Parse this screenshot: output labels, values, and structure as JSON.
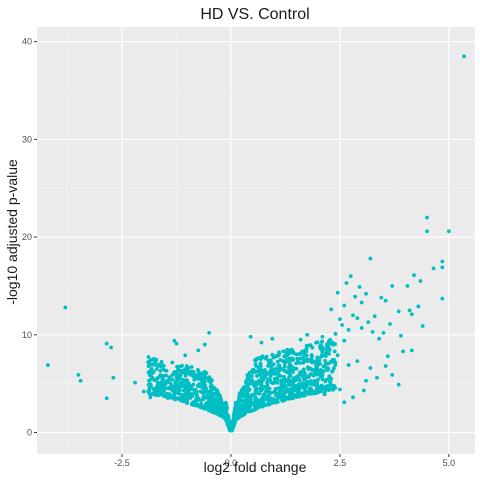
{
  "chart_data": {
    "type": "scatter",
    "title": "HD VS. Control",
    "xlabel": "log2 fold change",
    "ylabel": "-log10 adjusted p-value",
    "xlim": [
      -4.45,
      5.6
    ],
    "ylim": [
      -2.2,
      41.5
    ],
    "x_ticks": [
      -2.5,
      0.0,
      2.5,
      5.0
    ],
    "x_tick_labels": [
      "-2.5",
      "0.0",
      "2.5",
      "5.0"
    ],
    "y_ticks": [
      0,
      10,
      20,
      30,
      40
    ],
    "y_tick_labels": [
      "0",
      "10",
      "20",
      "30",
      "40"
    ],
    "grid": true,
    "background": "#ebebeb",
    "point_color": "#00bfc4",
    "series": [
      {
        "values": [
          {
            "x": 5.35,
            "y": 38.5
          },
          {
            "x": 4.5,
            "y": 22.0
          },
          {
            "x": 4.5,
            "y": 20.6
          },
          {
            "x": 5.0,
            "y": 20.6
          },
          {
            "x": 3.2,
            "y": 17.8
          },
          {
            "x": 4.85,
            "y": 17.5
          },
          {
            "x": 4.85,
            "y": 16.9
          },
          {
            "x": 4.65,
            "y": 16.8
          },
          {
            "x": 4.2,
            "y": 16.1
          },
          {
            "x": 2.75,
            "y": 16.0
          },
          {
            "x": 4.35,
            "y": 15.5
          },
          {
            "x": 2.65,
            "y": 15.3
          },
          {
            "x": 3.7,
            "y": 15.0
          },
          {
            "x": 4.05,
            "y": 15.0
          },
          {
            "x": 2.95,
            "y": 14.9
          },
          {
            "x": 2.45,
            "y": 14.3
          },
          {
            "x": 3.1,
            "y": 14.2
          },
          {
            "x": 2.85,
            "y": 13.9
          },
          {
            "x": 3.45,
            "y": 13.8
          },
          {
            "x": 4.85,
            "y": 13.7
          },
          {
            "x": 3.55,
            "y": 13.5
          },
          {
            "x": 3.0,
            "y": 13.3
          },
          {
            "x": 2.6,
            "y": 13.0
          },
          {
            "x": 4.3,
            "y": 12.9
          },
          {
            "x": 2.3,
            "y": 12.6
          },
          {
            "x": 4.1,
            "y": 12.5
          },
          {
            "x": 3.85,
            "y": 12.4
          },
          {
            "x": 4.15,
            "y": 12.1
          },
          {
            "x": 2.8,
            "y": 12.0
          },
          {
            "x": 3.3,
            "y": 11.9
          },
          {
            "x": 2.9,
            "y": 11.7
          },
          {
            "x": 2.5,
            "y": 11.6
          },
          {
            "x": 3.15,
            "y": 11.3
          },
          {
            "x": 3.65,
            "y": 11.1
          },
          {
            "x": 2.55,
            "y": 11.0
          },
          {
            "x": 4.4,
            "y": 10.9
          },
          {
            "x": 3.0,
            "y": 10.7
          },
          {
            "x": 2.7,
            "y": 10.5
          },
          {
            "x": 3.25,
            "y": 10.3
          },
          {
            "x": 3.5,
            "y": 10.2
          },
          {
            "x": 2.4,
            "y": 10.1
          },
          {
            "x": 1.75,
            "y": 10.0
          },
          {
            "x": 3.9,
            "y": 9.9
          },
          {
            "x": 2.1,
            "y": 9.8
          },
          {
            "x": 3.4,
            "y": 9.6
          },
          {
            "x": 1.6,
            "y": 9.5
          },
          {
            "x": 2.6,
            "y": 9.4
          },
          {
            "x": 2.2,
            "y": 9.0
          },
          {
            "x": 4.15,
            "y": 8.4
          },
          {
            "x": 3.6,
            "y": 7.8
          },
          {
            "x": 3.95,
            "y": 8.3
          },
          {
            "x": 2.45,
            "y": 7.9
          },
          {
            "x": 2.9,
            "y": 7.3
          },
          {
            "x": 3.55,
            "y": 6.8
          },
          {
            "x": 3.2,
            "y": 6.6
          },
          {
            "x": 2.7,
            "y": 6.9
          },
          {
            "x": 3.85,
            "y": 4.9
          },
          {
            "x": 3.7,
            "y": 5.9
          },
          {
            "x": 3.1,
            "y": 5.3
          },
          {
            "x": 3.35,
            "y": 5.6
          },
          {
            "x": -3.8,
            "y": 12.8
          },
          {
            "x": -2.85,
            "y": 9.1
          },
          {
            "x": -2.75,
            "y": 8.7
          },
          {
            "x": -4.2,
            "y": 6.9
          },
          {
            "x": -3.5,
            "y": 5.9
          },
          {
            "x": -3.45,
            "y": 5.3
          },
          {
            "x": -2.7,
            "y": 5.6
          },
          {
            "x": -2.85,
            "y": 3.5
          },
          {
            "x": -1.3,
            "y": 9.4
          },
          {
            "x": -1.25,
            "y": 9.1
          },
          {
            "x": -0.5,
            "y": 10.2
          },
          {
            "x": -1.9,
            "y": 7.2
          },
          {
            "x": -2.2,
            "y": 5.1
          },
          {
            "x": -2.0,
            "y": 4.2
          },
          {
            "x": -1.7,
            "y": 6.5
          },
          {
            "x": -1.55,
            "y": 5.8
          },
          {
            "x": -1.05,
            "y": 7.9
          },
          {
            "x": -0.75,
            "y": 8.4
          },
          {
            "x": -0.9,
            "y": 6.7
          },
          {
            "x": -0.6,
            "y": 9.0
          },
          {
            "x": -1.5,
            "y": 4.6
          },
          {
            "x": -1.2,
            "y": 5.4
          },
          {
            "x": -0.95,
            "y": 4.8
          },
          {
            "x": -1.85,
            "y": 3.6
          },
          {
            "x": 0.45,
            "y": 9.8
          },
          {
            "x": 0.7,
            "y": 9.2
          },
          {
            "x": 0.95,
            "y": 9.6
          },
          {
            "x": 1.2,
            "y": 8.3
          },
          {
            "x": 1.5,
            "y": 8.0
          },
          {
            "x": 1.85,
            "y": 7.6
          },
          {
            "x": 2.05,
            "y": 6.1
          },
          {
            "x": 2.3,
            "y": 5.5
          },
          {
            "x": 1.35,
            "y": 7.0
          },
          {
            "x": 1.65,
            "y": 6.3
          },
          {
            "x": 1.9,
            "y": 4.9
          },
          {
            "x": 2.5,
            "y": 4.4
          },
          {
            "x": 0.55,
            "y": 7.4
          },
          {
            "x": 0.85,
            "y": 6.8
          },
          {
            "x": 1.1,
            "y": 5.9
          },
          {
            "x": 2.15,
            "y": 3.9
          },
          {
            "x": 2.8,
            "y": 3.6
          },
          {
            "x": 3.05,
            "y": 4.3
          },
          {
            "x": 2.6,
            "y": 3.1
          },
          {
            "x": 1.75,
            "y": 5.2
          }
        ]
      }
    ],
    "dense_clouds": [
      {
        "side": "negative",
        "x_min": -1.9,
        "x_max": -0.02,
        "n": 700,
        "seed": 11
      },
      {
        "side": "positive",
        "x_min": 0.02,
        "x_max": 2.4,
        "n": 1000,
        "seed": 23
      }
    ]
  }
}
